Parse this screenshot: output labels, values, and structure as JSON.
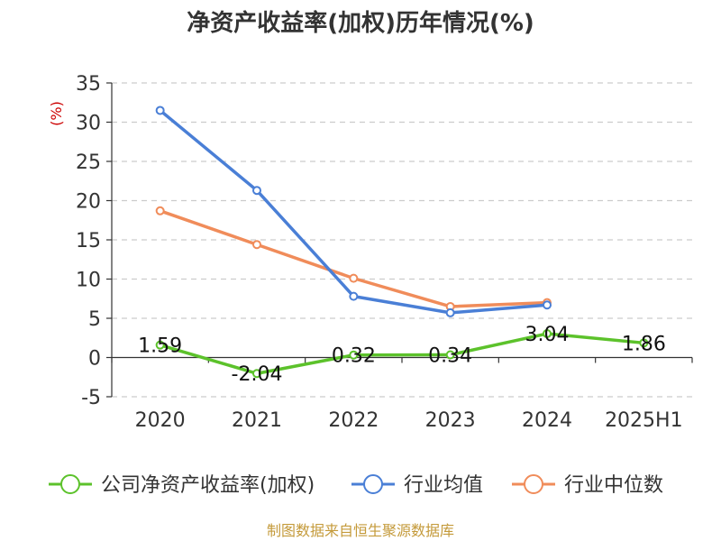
{
  "chart_data": {
    "type": "line",
    "title": "净资产收益率(加权)历年情况(%)",
    "ylabel": "(%)",
    "xlabel": "",
    "categories": [
      "2020",
      "2021",
      "2022",
      "2023",
      "2024",
      "2025H1"
    ],
    "ylim": [
      -5,
      35
    ],
    "yticks": [
      -5,
      0,
      5,
      10,
      15,
      20,
      25,
      30,
      35
    ],
    "grid": "horizontal-dashed",
    "legend_position": "bottom",
    "series": [
      {
        "name": "公司净资产收益率(加权)",
        "color": "#5cc22b",
        "values": [
          1.59,
          -2.04,
          0.32,
          0.34,
          3.04,
          1.86
        ],
        "labels": [
          "1.59",
          "-2.04",
          "0.32",
          "0.34",
          "3.04",
          "1.86"
        ]
      },
      {
        "name": "行业均值",
        "color": "#4a7fd6",
        "values": [
          31.5,
          21.3,
          7.8,
          5.7,
          6.7,
          null
        ]
      },
      {
        "name": "行业中位数",
        "color": "#f08c5a",
        "values": [
          18.7,
          14.4,
          10.1,
          6.5,
          7.0,
          null
        ]
      }
    ]
  },
  "footer": {
    "source": "制图数据来自恒生聚源数据库"
  }
}
